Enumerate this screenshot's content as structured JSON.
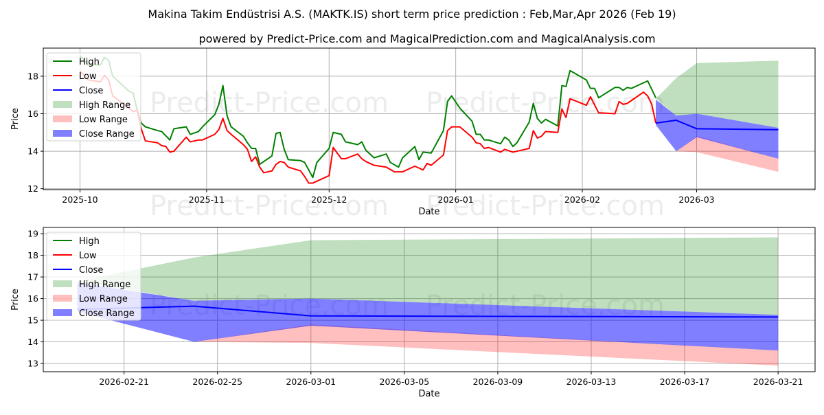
{
  "header": {
    "title": "Makina Takim Endüstrisi A.S. (MAKTK.IS) short term price prediction : Feb,Mar,Apr 2026 (Feb 19)",
    "subtitle": "powered by Predict-Price.com and MagicalPrediction.com and MagicalAnalysis.com"
  },
  "watermark": "Predict-Price.com",
  "colors": {
    "high": "#008000",
    "low": "#ff0000",
    "close": "#0000ff",
    "high_range": "#008000",
    "low_range": "#ff0000",
    "close_range": "#0000ff"
  },
  "chart_data": [
    {
      "type": "line",
      "title": "",
      "xlabel": "Date",
      "ylabel": "Price",
      "xlim": [
        "2025-09-22",
        "2026-03-30"
      ],
      "ylim": [
        11.95,
        19.5
      ],
      "yticks": [
        12,
        14,
        16,
        18
      ],
      "xticks": [
        {
          "date": "2025-10-01",
          "label": "2025-10"
        },
        {
          "date": "2025-11-01",
          "label": "2025-11"
        },
        {
          "date": "2025-12-01",
          "label": "2025-12"
        },
        {
          "date": "2026-01-01",
          "label": "2026-01"
        },
        {
          "date": "2026-02-01",
          "label": "2026-02"
        },
        {
          "date": "2026-03-01",
          "label": "2026-03"
        }
      ],
      "grid": true,
      "legend_position": "top-left",
      "legend": [
        "High",
        "Low",
        "Close",
        "High Range",
        "Low Range",
        "Close Range"
      ],
      "series": [
        {
          "name": "High",
          "key": "high",
          "points": [
            [
              "2025-10-01",
              19.1
            ],
            [
              "2025-10-03",
              18.6
            ],
            [
              "2025-10-06",
              18.6
            ],
            [
              "2025-10-07",
              19.0
            ],
            [
              "2025-10-08",
              18.85
            ],
            [
              "2025-10-09",
              18.0
            ],
            [
              "2025-10-13",
              17.2
            ],
            [
              "2025-10-14",
              17.1
            ],
            [
              "2025-10-15",
              16.2
            ],
            [
              "2025-10-16",
              15.5
            ],
            [
              "2025-10-17",
              15.3
            ],
            [
              "2025-10-20",
              15.1
            ],
            [
              "2025-10-21",
              15.05
            ],
            [
              "2025-10-23",
              14.6
            ],
            [
              "2025-10-24",
              15.2
            ],
            [
              "2025-10-27",
              15.3
            ],
            [
              "2025-10-28",
              14.9
            ],
            [
              "2025-10-30",
              15.05
            ],
            [
              "2025-10-31",
              15.3
            ],
            [
              "2025-11-03",
              15.95
            ],
            [
              "2025-11-04",
              16.5
            ],
            [
              "2025-11-05",
              17.5
            ],
            [
              "2025-11-06",
              15.9
            ],
            [
              "2025-11-07",
              15.3
            ],
            [
              "2025-11-10",
              14.8
            ],
            [
              "2025-11-11",
              14.45
            ],
            [
              "2025-11-12",
              14.15
            ],
            [
              "2025-11-13",
              14.15
            ],
            [
              "2025-11-14",
              13.3
            ],
            [
              "2025-11-17",
              13.75
            ],
            [
              "2025-11-18",
              14.95
            ],
            [
              "2025-11-19",
              15.0
            ],
            [
              "2025-11-20",
              14.1
            ],
            [
              "2025-11-21",
              13.55
            ],
            [
              "2025-11-24",
              13.5
            ],
            [
              "2025-11-25",
              13.4
            ],
            [
              "2025-11-27",
              12.6
            ],
            [
              "2025-11-28",
              13.4
            ],
            [
              "2025-12-01",
              14.15
            ],
            [
              "2025-12-02",
              15.0
            ],
            [
              "2025-12-04",
              14.9
            ],
            [
              "2025-12-05",
              14.5
            ],
            [
              "2025-12-08",
              14.35
            ],
            [
              "2025-12-09",
              14.5
            ],
            [
              "2025-12-10",
              14.05
            ],
            [
              "2025-12-12",
              13.65
            ],
            [
              "2025-12-15",
              13.85
            ],
            [
              "2025-12-16",
              13.4
            ],
            [
              "2025-12-18",
              13.15
            ],
            [
              "2025-12-19",
              13.65
            ],
            [
              "2025-12-22",
              14.25
            ],
            [
              "2025-12-23",
              13.55
            ],
            [
              "2025-12-24",
              13.95
            ],
            [
              "2025-12-26",
              13.9
            ],
            [
              "2025-12-29",
              15.1
            ],
            [
              "2025-12-30",
              16.65
            ],
            [
              "2025-12-31",
              16.95
            ],
            [
              "2026-01-02",
              16.3
            ],
            [
              "2026-01-05",
              15.6
            ],
            [
              "2026-01-06",
              14.9
            ],
            [
              "2026-01-07",
              14.9
            ],
            [
              "2026-01-08",
              14.6
            ],
            [
              "2026-01-09",
              14.6
            ],
            [
              "2026-01-12",
              14.4
            ],
            [
              "2026-01-13",
              14.75
            ],
            [
              "2026-01-14",
              14.6
            ],
            [
              "2026-01-15",
              14.25
            ],
            [
              "2026-01-16",
              14.45
            ],
            [
              "2026-01-19",
              15.55
            ],
            [
              "2026-01-20",
              16.55
            ],
            [
              "2026-01-21",
              15.75
            ],
            [
              "2026-01-22",
              15.5
            ],
            [
              "2026-01-23",
              15.7
            ],
            [
              "2026-01-26",
              15.35
            ],
            [
              "2026-01-27",
              17.5
            ],
            [
              "2026-01-28",
              17.45
            ],
            [
              "2026-01-29",
              18.3
            ],
            [
              "2026-02-02",
              17.8
            ],
            [
              "2026-02-03",
              17.35
            ],
            [
              "2026-02-04",
              17.35
            ],
            [
              "2026-02-05",
              16.85
            ],
            [
              "2026-02-09",
              17.4
            ],
            [
              "2026-02-10",
              17.4
            ],
            [
              "2026-02-11",
              17.25
            ],
            [
              "2026-02-12",
              17.4
            ],
            [
              "2026-02-13",
              17.35
            ],
            [
              "2026-02-17",
              17.75
            ],
            [
              "2026-02-19",
              16.85
            ]
          ]
        },
        {
          "name": "Low",
          "key": "low",
          "points": [
            [
              "2025-10-01",
              18.3
            ],
            [
              "2025-10-03",
              17.8
            ],
            [
              "2025-10-06",
              17.7
            ],
            [
              "2025-10-07",
              18.05
            ],
            [
              "2025-10-08",
              17.8
            ],
            [
              "2025-10-09",
              16.95
            ],
            [
              "2025-10-13",
              16.3
            ],
            [
              "2025-10-14",
              16.1
            ],
            [
              "2025-10-15",
              16.2
            ],
            [
              "2025-10-16",
              15.2
            ],
            [
              "2025-10-17",
              14.55
            ],
            [
              "2025-10-20",
              14.45
            ],
            [
              "2025-10-21",
              14.3
            ],
            [
              "2025-10-22",
              14.25
            ],
            [
              "2025-10-23",
              13.95
            ],
            [
              "2025-10-24",
              14.0
            ],
            [
              "2025-10-27",
              14.75
            ],
            [
              "2025-10-28",
              14.5
            ],
            [
              "2025-10-30",
              14.6
            ],
            [
              "2025-10-31",
              14.6
            ],
            [
              "2025-11-03",
              14.9
            ],
            [
              "2025-11-04",
              15.15
            ],
            [
              "2025-11-05",
              15.75
            ],
            [
              "2025-11-06",
              15.1
            ],
            [
              "2025-11-07",
              14.9
            ],
            [
              "2025-11-10",
              14.35
            ],
            [
              "2025-11-11",
              14.1
            ],
            [
              "2025-11-12",
              13.45
            ],
            [
              "2025-11-13",
              13.7
            ],
            [
              "2025-11-14",
              13.15
            ],
            [
              "2025-11-15",
              12.85
            ],
            [
              "2025-11-17",
              12.95
            ],
            [
              "2025-11-18",
              13.3
            ],
            [
              "2025-11-19",
              13.45
            ],
            [
              "2025-11-20",
              13.4
            ],
            [
              "2025-11-21",
              13.15
            ],
            [
              "2025-11-24",
              12.95
            ],
            [
              "2025-11-25",
              12.65
            ],
            [
              "2025-11-26",
              12.3
            ],
            [
              "2025-11-27",
              12.3
            ],
            [
              "2025-12-01",
              12.7
            ],
            [
              "2025-12-02",
              14.2
            ],
            [
              "2025-12-04",
              13.6
            ],
            [
              "2025-12-05",
              13.6
            ],
            [
              "2025-12-08",
              13.85
            ],
            [
              "2025-12-09",
              13.6
            ],
            [
              "2025-12-10",
              13.45
            ],
            [
              "2025-12-12",
              13.25
            ],
            [
              "2025-12-15",
              13.15
            ],
            [
              "2025-12-17",
              12.9
            ],
            [
              "2025-12-19",
              12.9
            ],
            [
              "2025-12-22",
              13.2
            ],
            [
              "2025-12-24",
              13.0
            ],
            [
              "2025-12-25",
              13.35
            ],
            [
              "2025-12-26",
              13.25
            ],
            [
              "2025-12-29",
              13.8
            ],
            [
              "2025-12-30",
              15.1
            ],
            [
              "2025-12-31",
              15.3
            ],
            [
              "2026-01-02",
              15.3
            ],
            [
              "2026-01-05",
              14.75
            ],
            [
              "2026-01-06",
              14.45
            ],
            [
              "2026-01-07",
              14.4
            ],
            [
              "2026-01-08",
              14.15
            ],
            [
              "2026-01-09",
              14.2
            ],
            [
              "2026-01-12",
              13.95
            ],
            [
              "2026-01-13",
              14.1
            ],
            [
              "2026-01-15",
              13.95
            ],
            [
              "2026-01-19",
              14.15
            ],
            [
              "2026-01-20",
              15.1
            ],
            [
              "2026-01-21",
              14.7
            ],
            [
              "2026-01-22",
              14.8
            ],
            [
              "2026-01-23",
              15.05
            ],
            [
              "2026-01-26",
              15.0
            ],
            [
              "2026-01-27",
              16.25
            ],
            [
              "2026-01-28",
              15.8
            ],
            [
              "2026-01-29",
              16.8
            ],
            [
              "2026-02-02",
              16.45
            ],
            [
              "2026-02-03",
              16.9
            ],
            [
              "2026-02-05",
              16.05
            ],
            [
              "2026-02-09",
              16.0
            ],
            [
              "2026-02-10",
              16.65
            ],
            [
              "2026-02-11",
              16.5
            ],
            [
              "2026-02-12",
              16.55
            ],
            [
              "2026-02-16",
              17.15
            ],
            [
              "2026-02-17",
              16.95
            ],
            [
              "2026-02-18",
              16.5
            ],
            [
              "2026-02-19",
              15.5
            ]
          ]
        },
        {
          "name": "Close",
          "key": "close",
          "points": [
            [
              "2026-02-19",
              15.5
            ],
            [
              "2026-02-24",
              15.65
            ],
            [
              "2026-03-01",
              15.2
            ],
            [
              "2026-03-21",
              15.15
            ]
          ]
        }
      ],
      "ranges": [
        {
          "name": "High Range",
          "key": "high_range",
          "opacity": 0.25,
          "dates": [
            "2026-02-19",
            "2026-02-24",
            "2026-03-01",
            "2026-03-21"
          ],
          "upper": [
            16.8,
            17.9,
            18.7,
            18.83
          ],
          "lower": [
            16.8,
            15.9,
            16.0,
            15.25
          ]
        },
        {
          "name": "Low Range",
          "key": "low_range",
          "opacity": 0.25,
          "dates": [
            "2026-02-19",
            "2026-02-24",
            "2026-03-01",
            "2026-03-21"
          ],
          "upper": [
            15.5,
            14.0,
            14.8,
            13.6
          ],
          "lower": [
            15.5,
            14.0,
            13.95,
            12.9
          ]
        },
        {
          "name": "Close Range",
          "key": "close_range",
          "opacity": 0.5,
          "dates": [
            "2026-02-19",
            "2026-02-24",
            "2026-03-01",
            "2026-03-21"
          ],
          "upper": [
            16.75,
            15.9,
            16.0,
            15.25
          ],
          "lower": [
            15.4,
            14.0,
            14.75,
            13.6
          ]
        }
      ]
    },
    {
      "type": "line",
      "title": "",
      "xlabel": "Date",
      "ylabel": "Price",
      "xlim": [
        "2026-02-17T13:00",
        "2026-03-22T14:00"
      ],
      "ylim": [
        12.62,
        19.29
      ],
      "yticks": [
        13,
        14,
        15,
        16,
        17,
        18,
        19
      ],
      "xticks": [
        {
          "date": "2026-02-21",
          "label": "2026-02-21"
        },
        {
          "date": "2026-02-25",
          "label": "2026-02-25"
        },
        {
          "date": "2026-03-01",
          "label": "2026-03-01"
        },
        {
          "date": "2026-03-05",
          "label": "2026-03-05"
        },
        {
          "date": "2026-03-09",
          "label": "2026-03-09"
        },
        {
          "date": "2026-03-13",
          "label": "2026-03-13"
        },
        {
          "date": "2026-03-17",
          "label": "2026-03-17"
        },
        {
          "date": "2026-03-21",
          "label": "2026-03-21"
        }
      ],
      "grid": true,
      "legend_position": "top-left",
      "legend": [
        "High",
        "Low",
        "Close",
        "High Range",
        "Low Range",
        "Close Range"
      ],
      "series": [
        {
          "name": "Close",
          "key": "close",
          "points": [
            [
              "2026-02-19",
              15.5
            ],
            [
              "2026-02-24",
              15.65
            ],
            [
              "2026-03-01",
              15.2
            ],
            [
              "2026-03-21",
              15.15
            ]
          ]
        }
      ],
      "ranges": [
        {
          "name": "High Range",
          "key": "high_range",
          "opacity": 0.25,
          "dates": [
            "2026-02-19",
            "2026-02-24",
            "2026-03-01",
            "2026-03-21"
          ],
          "upper": [
            16.8,
            17.9,
            18.7,
            18.83
          ],
          "lower": [
            16.8,
            15.9,
            16.0,
            15.25
          ]
        },
        {
          "name": "Low Range",
          "key": "low_range",
          "opacity": 0.25,
          "dates": [
            "2026-02-19",
            "2026-02-24",
            "2026-03-01",
            "2026-03-21"
          ],
          "upper": [
            15.5,
            14.0,
            14.8,
            13.6
          ],
          "lower": [
            15.5,
            14.0,
            13.95,
            12.9
          ]
        },
        {
          "name": "Close Range",
          "key": "close_range",
          "opacity": 0.5,
          "dates": [
            "2026-02-19",
            "2026-02-24",
            "2026-03-01",
            "2026-03-21"
          ],
          "upper": [
            16.75,
            15.9,
            16.0,
            15.25
          ],
          "lower": [
            15.4,
            14.0,
            14.75,
            13.6
          ]
        }
      ]
    }
  ]
}
